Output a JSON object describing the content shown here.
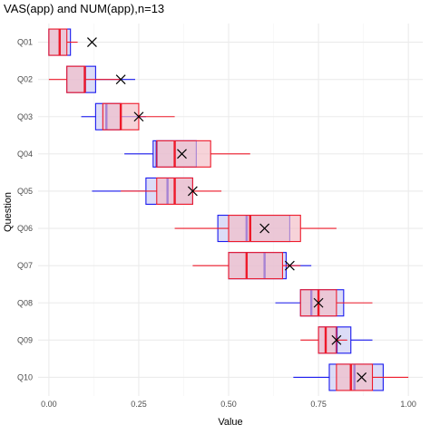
{
  "chart_data": {
    "type": "boxplot",
    "title": "VAS(app) and NUM(app),n=13",
    "xlabel": "Value",
    "ylabel": "Question",
    "xlim": [
      -0.03,
      1.04
    ],
    "x_ticks": [
      0.0,
      0.25,
      0.5,
      0.75,
      1.0
    ],
    "x_tick_labels": [
      "0.00",
      "0.25",
      "0.50",
      "0.75",
      "1.00"
    ],
    "grid": true,
    "categories": [
      "Q01",
      "Q02",
      "Q03",
      "Q04",
      "Q05",
      "Q06",
      "Q07",
      "Q08",
      "Q09",
      "Q10"
    ],
    "series": [
      {
        "name": "",
        "color": "#1a1aee",
        "fill": "#c9c9f2",
        "boxes": [
          {
            "whisker_low": 0.0,
            "q1": 0.0,
            "median": 0.03,
            "q3": 0.06,
            "whisker_high": 0.06
          },
          {
            "whisker_low": 0.05,
            "q1": 0.05,
            "median": 0.1,
            "q3": 0.13,
            "whisker_high": 0.24
          },
          {
            "whisker_low": 0.09,
            "q1": 0.13,
            "median": 0.16,
            "q3": 0.2,
            "whisker_high": 0.27
          },
          {
            "whisker_low": 0.21,
            "q1": 0.29,
            "median": 0.3,
            "q3": 0.41,
            "whisker_high": 0.41
          },
          {
            "whisker_low": 0.12,
            "q1": 0.27,
            "median": 0.33,
            "q3": 0.4,
            "whisker_high": 0.4
          },
          {
            "whisker_low": 0.47,
            "q1": 0.47,
            "median": 0.55,
            "q3": 0.67,
            "whisker_high": 0.67
          },
          {
            "whisker_low": 0.5,
            "q1": 0.5,
            "median": 0.6,
            "q3": 0.66,
            "whisker_high": 0.73
          },
          {
            "whisker_low": 0.63,
            "q1": 0.7,
            "median": 0.73,
            "q3": 0.82,
            "whisker_high": 0.82
          },
          {
            "whisker_low": 0.75,
            "q1": 0.75,
            "median": 0.8,
            "q3": 0.84,
            "whisker_high": 0.9
          },
          {
            "whisker_low": 0.68,
            "q1": 0.78,
            "median": 0.85,
            "q3": 0.93,
            "whisker_high": 0.93
          }
        ]
      },
      {
        "name": "",
        "color": "#ee1a2a",
        "fill": "#f2bcc5",
        "boxes": [
          {
            "whisker_low": 0.0,
            "q1": 0.0,
            "median": 0.03,
            "q3": 0.05,
            "whisker_high": 0.08
          },
          {
            "whisker_low": 0.0,
            "q1": 0.05,
            "median": 0.1,
            "q3": 0.1,
            "whisker_high": 0.2
          },
          {
            "whisker_low": 0.15,
            "q1": 0.15,
            "median": 0.2,
            "q3": 0.25,
            "whisker_high": 0.35
          },
          {
            "whisker_low": 0.3,
            "q1": 0.3,
            "median": 0.35,
            "q3": 0.45,
            "whisker_high": 0.56
          },
          {
            "whisker_low": 0.2,
            "q1": 0.3,
            "median": 0.35,
            "q3": 0.4,
            "whisker_high": 0.48
          },
          {
            "whisker_low": 0.35,
            "q1": 0.5,
            "median": 0.56,
            "q3": 0.7,
            "whisker_high": 0.8
          },
          {
            "whisker_low": 0.4,
            "q1": 0.5,
            "median": 0.55,
            "q3": 0.65,
            "whisker_high": 0.7
          },
          {
            "whisker_low": 0.7,
            "q1": 0.7,
            "median": 0.75,
            "q3": 0.8,
            "whisker_high": 0.9
          },
          {
            "whisker_low": 0.7,
            "q1": 0.75,
            "median": 0.77,
            "q3": 0.8,
            "whisker_high": 0.83
          },
          {
            "whisker_low": 0.8,
            "q1": 0.8,
            "median": 0.84,
            "q3": 0.9,
            "whisker_high": 1.0
          }
        ]
      }
    ],
    "markers": {
      "symbol": "x",
      "color": "#000000",
      "values": [
        0.12,
        0.2,
        0.25,
        0.37,
        0.4,
        0.6,
        0.67,
        0.75,
        0.8,
        0.87
      ]
    }
  }
}
